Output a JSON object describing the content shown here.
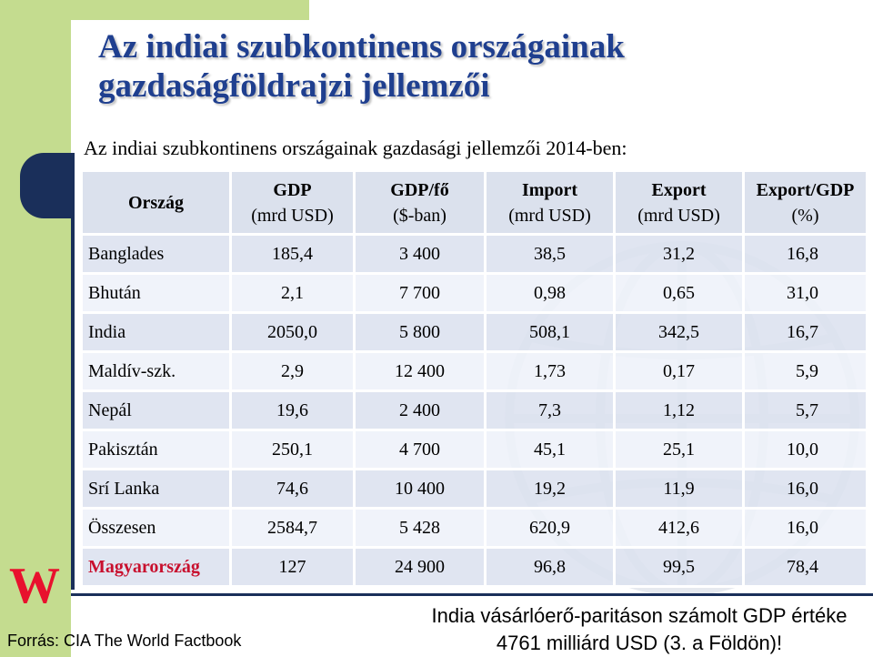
{
  "title_line1": "Az indiai szubkontinens országainak",
  "title_line2": "gazdaságföldrajzi jellemzői",
  "subtitle": "Az indiai szubkontinens országainak gazdasági jellemzői 2014-ben:",
  "logo": "W",
  "table": {
    "headers": [
      {
        "main": "Ország",
        "sub": ""
      },
      {
        "main": "GDP",
        "sub": "(mrd USD)"
      },
      {
        "main": "GDP/fő",
        "sub": "($-ban)"
      },
      {
        "main": "Import",
        "sub": "(mrd USD)"
      },
      {
        "main": "Export",
        "sub": "(mrd USD)"
      },
      {
        "main": "Export/GDP",
        "sub": "(%)"
      }
    ],
    "rows": [
      [
        "Banglades",
        "185,4",
        "3 400",
        "38,5",
        "31,2",
        "16,8"
      ],
      [
        "Bhután",
        "2,1",
        "7 700",
        "0,98",
        "0,65",
        "31,0"
      ],
      [
        "India",
        "2050,0",
        "5 800",
        "508,1",
        "342,5",
        "16,7"
      ],
      [
        "Maldív-szk.",
        "2,9",
        "12 400",
        "1,73",
        "0,17",
        "5,9"
      ],
      [
        "Nepál",
        "19,6",
        "2 400",
        "7,3",
        "1,12",
        "5,7"
      ],
      [
        "Pakisztán",
        "250,1",
        "4 700",
        "45,1",
        "25,1",
        "10,0"
      ],
      [
        "Srí Lanka",
        "74,6",
        "10 400",
        "19,2",
        "11,9",
        "16,0"
      ],
      [
        " Összesen",
        "2584,7",
        "5 428",
        "620,9",
        "412,6",
        "16,0"
      ],
      [
        "Magyarország",
        "127",
        "24 900",
        "96,8",
        "99,5",
        "78,4"
      ]
    ]
  },
  "note_line1": "India vásárlóerő-paritáson számolt GDP értéke",
  "note_line2": "4761 milliárd USD (3. a Földön)!",
  "source": "Forrás: CIA The World Factbook",
  "colors": {
    "title": "#1f3f8f",
    "accent_green": "#c4dc8f",
    "navy": "#1a2f5a",
    "highlight_red": "#c8102e"
  }
}
